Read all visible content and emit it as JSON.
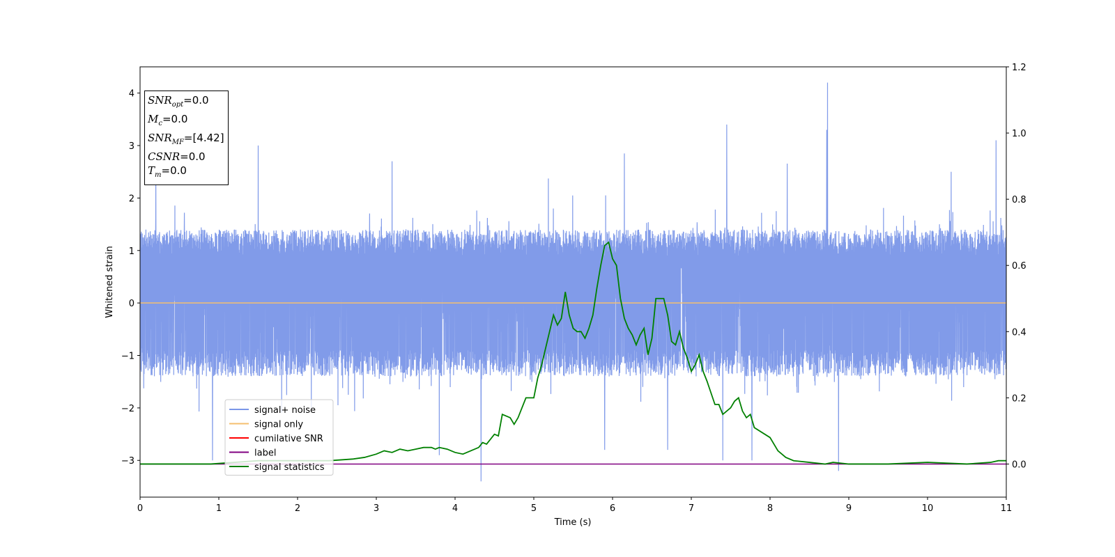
{
  "chart_data": {
    "type": "line",
    "xlabel": "Time (s)",
    "ylabel": "Whitened strain",
    "xlim": [
      0,
      11
    ],
    "ylim": [
      -3.7,
      4.5
    ],
    "y2lim": [
      -0.1,
      1.2
    ],
    "x_ticks": [
      "0",
      "1",
      "2",
      "3",
      "4",
      "5",
      "6",
      "7",
      "8",
      "9",
      "10",
      "11"
    ],
    "y_ticks": [
      "−3",
      "−2",
      "−1",
      "0",
      "1",
      "2",
      "3",
      "4"
    ],
    "y2_ticks": [
      "0.0",
      "0.2",
      "0.4",
      "0.6",
      "0.8",
      "1.0",
      "1.2"
    ],
    "grid": false,
    "legend_position": "lower-left",
    "info_box": {
      "snr_opt": "=0.0",
      "mc": "=0.0",
      "snr_mf": "=[4.42]",
      "csnr": "=0.0",
      "tm": "=0.0"
    },
    "series": [
      {
        "name": "signal+ noise",
        "axis": "left",
        "color": "#7a96e8",
        "description_values": "dense noise, approximately ±1.3 band with peaks to 4.2 and troughs to -3.4",
        "spikes": [
          {
            "x": 8.73,
            "y": 4.2
          },
          {
            "x": 8.72,
            "y": 3.3
          },
          {
            "x": 7.45,
            "y": 3.4
          },
          {
            "x": 10.87,
            "y": 3.1
          },
          {
            "x": 4.33,
            "y": -3.4
          },
          {
            "x": 8.87,
            "y": -3.2
          },
          {
            "x": 0.92,
            "y": -3.0
          },
          {
            "x": 5.9,
            "y": -2.8
          },
          {
            "x": 6.7,
            "y": -2.8
          },
          {
            "x": 7.77,
            "y": -3.0
          },
          {
            "x": 7.4,
            "y": -3.0
          },
          {
            "x": 3.8,
            "y": -2.9
          },
          {
            "x": 0.2,
            "y": 2.7
          },
          {
            "x": 1.5,
            "y": 3.0
          },
          {
            "x": 6.15,
            "y": 2.85
          },
          {
            "x": 3.2,
            "y": 2.7
          },
          {
            "x": 10.3,
            "y": 2.5
          }
        ]
      },
      {
        "name": "signal only",
        "axis": "left",
        "color": "#f5bf6e",
        "x": [
          0,
          11
        ],
        "y": [
          0,
          0
        ]
      },
      {
        "name": "cumilative SNR",
        "axis": "right",
        "color": "#ff0000",
        "x": [],
        "y": []
      },
      {
        "name": "label",
        "axis": "right",
        "color": "#800080",
        "x": [
          0,
          11
        ],
        "y": [
          0,
          0
        ]
      },
      {
        "name": "signal statistics",
        "axis": "right",
        "color": "#008000",
        "x": [
          0,
          0.3,
          0.6,
          0.9,
          1.2,
          1.5,
          1.8,
          2.1,
          2.4,
          2.7,
          2.85,
          3.0,
          3.1,
          3.2,
          3.3,
          3.4,
          3.5,
          3.6,
          3.7,
          3.75,
          3.8,
          3.9,
          4.0,
          4.1,
          4.2,
          4.3,
          4.35,
          4.4,
          4.5,
          4.55,
          4.6,
          4.7,
          4.75,
          4.8,
          4.9,
          5.0,
          5.05,
          5.1,
          5.2,
          5.25,
          5.3,
          5.35,
          5.4,
          5.45,
          5.5,
          5.55,
          5.6,
          5.65,
          5.7,
          5.75,
          5.8,
          5.85,
          5.9,
          5.95,
          6.0,
          6.05,
          6.1,
          6.15,
          6.2,
          6.25,
          6.3,
          6.35,
          6.4,
          6.45,
          6.5,
          6.55,
          6.6,
          6.65,
          6.7,
          6.75,
          6.8,
          6.85,
          6.9,
          6.95,
          7.0,
          7.05,
          7.1,
          7.15,
          7.2,
          7.3,
          7.35,
          7.4,
          7.5,
          7.55,
          7.6,
          7.65,
          7.7,
          7.75,
          7.8,
          8.0,
          8.1,
          8.2,
          8.3,
          8.5,
          8.7,
          8.8,
          9.0,
          9.5,
          10.0,
          10.5,
          10.8,
          10.9,
          11.0
        ],
        "y": [
          0.0,
          0.0,
          0.0,
          0.0,
          0.005,
          0.01,
          0.01,
          0.01,
          0.01,
          0.015,
          0.02,
          0.03,
          0.04,
          0.035,
          0.045,
          0.04,
          0.045,
          0.05,
          0.05,
          0.045,
          0.05,
          0.045,
          0.035,
          0.03,
          0.04,
          0.05,
          0.065,
          0.06,
          0.09,
          0.085,
          0.15,
          0.14,
          0.12,
          0.14,
          0.2,
          0.2,
          0.26,
          0.3,
          0.4,
          0.45,
          0.42,
          0.44,
          0.52,
          0.45,
          0.41,
          0.4,
          0.4,
          0.38,
          0.41,
          0.45,
          0.53,
          0.6,
          0.66,
          0.67,
          0.62,
          0.6,
          0.5,
          0.44,
          0.41,
          0.39,
          0.36,
          0.39,
          0.41,
          0.33,
          0.38,
          0.5,
          0.5,
          0.5,
          0.45,
          0.37,
          0.36,
          0.4,
          0.35,
          0.32,
          0.28,
          0.3,
          0.33,
          0.28,
          0.25,
          0.18,
          0.18,
          0.15,
          0.17,
          0.19,
          0.2,
          0.16,
          0.14,
          0.15,
          0.11,
          0.08,
          0.04,
          0.02,
          0.01,
          0.005,
          0.0,
          0.005,
          0.0,
          0.0,
          0.005,
          0.0,
          0.005,
          0.01,
          0.01
        ]
      }
    ]
  }
}
